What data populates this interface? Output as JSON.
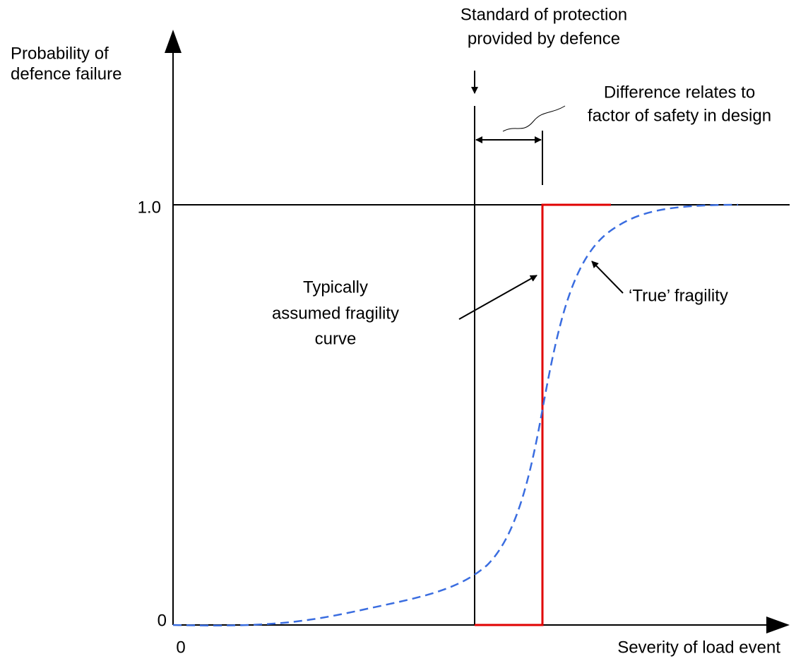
{
  "title_lines": [
    "Standard of protection",
    "provided by defence"
  ],
  "y_axis_label": [
    "Probability of",
    "defence failure"
  ],
  "x_axis_label": "Severity of load event",
  "y_ticks": [
    "1.0",
    "0"
  ],
  "x_tick": "0",
  "difference_note": [
    "Difference relates to",
    "factor of safety in design"
  ],
  "assumed_label": [
    "Typically",
    "assumed fragility",
    "curve"
  ],
  "true_label": "‘True’ fragility"
}
